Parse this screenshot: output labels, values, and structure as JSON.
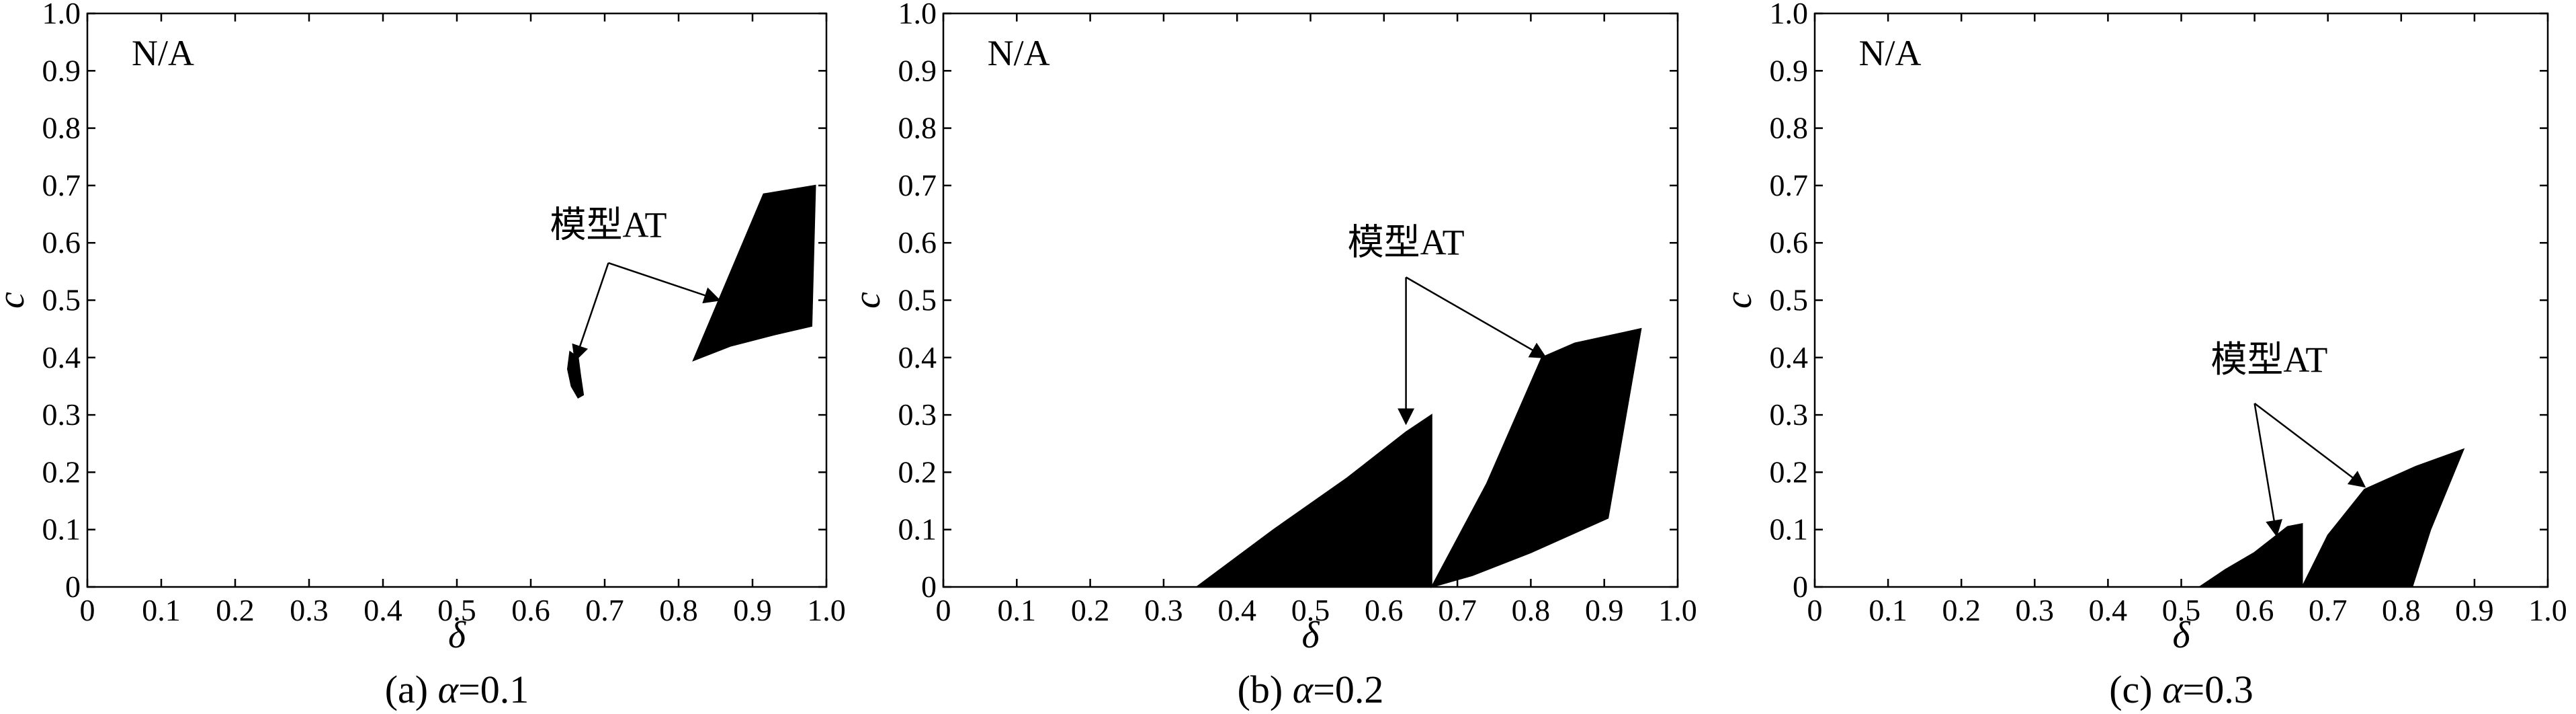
{
  "chart_data": [
    {
      "type": "area",
      "caption": {
        "prefix": "(a) ",
        "var": "α",
        "suffix": "=0.1"
      },
      "xlabel": "δ",
      "ylabel": "c",
      "xlim": [
        0,
        1.0
      ],
      "ylim": [
        0,
        1.0
      ],
      "xticks": [
        "0",
        "0.1",
        "0.2",
        "0.3",
        "0.4",
        "0.5",
        "0.6",
        "0.7",
        "0.8",
        "0.9",
        "1.0"
      ],
      "yticks": [
        "0",
        "0.1",
        "0.2",
        "0.3",
        "0.4",
        "0.5",
        "0.6",
        "0.7",
        "0.8",
        "0.9",
        "1.0"
      ],
      "corner_label": "N/A",
      "regions": [
        {
          "points": [
            [
              0.653,
              0.41
            ],
            [
              0.664,
              0.4
            ],
            [
              0.667,
              0.37
            ],
            [
              0.671,
              0.335
            ],
            [
              0.664,
              0.33
            ],
            [
              0.655,
              0.35
            ],
            [
              0.65,
              0.38
            ]
          ]
        },
        {
          "points": [
            [
              0.82,
              0.395
            ],
            [
              0.915,
              0.685
            ],
            [
              0.985,
              0.7
            ],
            [
              0.98,
              0.455
            ],
            [
              0.93,
              0.44
            ],
            [
              0.87,
              0.42
            ]
          ]
        }
      ],
      "annotation": {
        "text": "模型AT",
        "at": [
          0.705,
          0.61
        ],
        "hub": [
          0.705,
          0.565
        ],
        "targets": [
          [
            0.66,
            0.395
          ],
          [
            0.855,
            0.5
          ]
        ]
      }
    },
    {
      "type": "area",
      "caption": {
        "prefix": "(b) ",
        "var": "α",
        "suffix": "=0.2"
      },
      "xlabel": "δ",
      "ylabel": "c",
      "xlim": [
        0,
        1.0
      ],
      "ylim": [
        0,
        1.0
      ],
      "xticks": [
        "0",
        "0.1",
        "0.2",
        "0.3",
        "0.4",
        "0.5",
        "0.6",
        "0.7",
        "0.8",
        "0.9",
        "1.0"
      ],
      "yticks": [
        "0",
        "0.1",
        "0.2",
        "0.3",
        "0.4",
        "0.5",
        "0.6",
        "0.7",
        "0.8",
        "0.9",
        "1.0"
      ],
      "corner_label": "N/A",
      "regions": [
        {
          "points": [
            [
              0.345,
              0
            ],
            [
              0.45,
              0.1
            ],
            [
              0.55,
              0.19
            ],
            [
              0.63,
              0.27
            ],
            [
              0.665,
              0.3
            ],
            [
              0.665,
              0
            ]
          ]
        },
        {
          "points": [
            [
              0.665,
              0
            ],
            [
              0.74,
              0.18
            ],
            [
              0.815,
              0.4
            ],
            [
              0.86,
              0.425
            ],
            [
              0.95,
              0.45
            ],
            [
              0.905,
              0.12
            ],
            [
              0.8,
              0.06
            ],
            [
              0.72,
              0.02
            ]
          ]
        }
      ],
      "annotation": {
        "text": "模型AT",
        "at": [
          0.63,
          0.58
        ],
        "hub": [
          0.63,
          0.54
        ],
        "targets": [
          [
            0.63,
            0.285
          ],
          [
            0.82,
            0.4
          ]
        ]
      }
    },
    {
      "type": "area",
      "caption": {
        "prefix": "(c) ",
        "var": "α",
        "suffix": "=0.3"
      },
      "xlabel": "δ",
      "ylabel": "c",
      "xlim": [
        0,
        1.0
      ],
      "ylim": [
        0,
        1.0
      ],
      "xticks": [
        "0",
        "0.1",
        "0.2",
        "0.3",
        "0.4",
        "0.5",
        "0.6",
        "0.7",
        "0.8",
        "0.9",
        "1.0"
      ],
      "yticks": [
        "0",
        "0.1",
        "0.2",
        "0.3",
        "0.4",
        "0.5",
        "0.6",
        "0.7",
        "0.8",
        "0.9",
        "1.0"
      ],
      "corner_label": "N/A",
      "regions": [
        {
          "points": [
            [
              0.525,
              0
            ],
            [
              0.56,
              0.03
            ],
            [
              0.6,
              0.06
            ],
            [
              0.645,
              0.105
            ],
            [
              0.665,
              0.11
            ],
            [
              0.665,
              0
            ]
          ]
        },
        {
          "points": [
            [
              0.665,
              0
            ],
            [
              0.7,
              0.09
            ],
            [
              0.75,
              0.17
            ],
            [
              0.82,
              0.21
            ],
            [
              0.885,
              0.24
            ],
            [
              0.84,
              0.1
            ],
            [
              0.815,
              0
            ]
          ]
        }
      ],
      "annotation": {
        "text": "模型AT",
        "at": [
          0.62,
          0.375
        ],
        "hub": [
          0.6,
          0.32
        ],
        "targets": [
          [
            0.63,
            0.09
          ],
          [
            0.75,
            0.175
          ]
        ]
      }
    }
  ]
}
